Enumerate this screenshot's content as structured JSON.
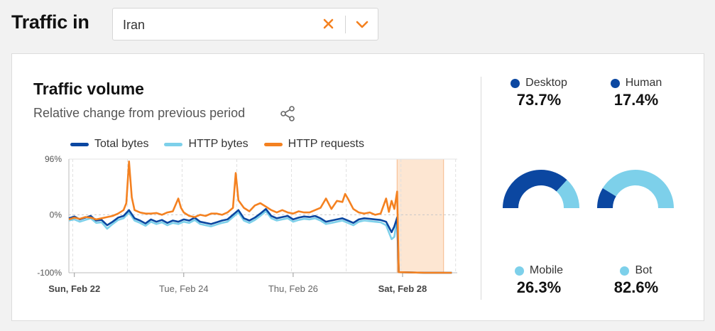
{
  "header": {
    "title": "Traffic in",
    "location_select": {
      "value": "Iran"
    }
  },
  "card": {
    "title": "Traffic volume",
    "subtitle": "Relative change from previous period"
  },
  "colors": {
    "total_bytes": "#0b47a1",
    "http_bytes": "#7dd0ea",
    "http_requests": "#f48120",
    "highlight": "#fde6d2",
    "human": "#0b47a1",
    "bot": "#7dd0ea"
  },
  "chart_data": {
    "type": "line",
    "legend": [
      "Total bytes",
      "HTTP bytes",
      "HTTP requests"
    ],
    "y_ticks": [
      "96%",
      "0%",
      "-100%"
    ],
    "x_ticks": [
      "Sun, Feb 22",
      "Tue, Feb 24",
      "Thu, Feb 26",
      "Sat, Feb 28"
    ],
    "ylim": [
      -100,
      96
    ],
    "x_range_days": [
      0,
      7.1
    ],
    "highlight_days": [
      6.0,
      6.85
    ],
    "series": [
      {
        "name": "Total bytes",
        "points": [
          [
            0,
            -6
          ],
          [
            0.1,
            -3
          ],
          [
            0.2,
            -8
          ],
          [
            0.3,
            -5
          ],
          [
            0.4,
            -2
          ],
          [
            0.5,
            -10
          ],
          [
            0.6,
            -9
          ],
          [
            0.7,
            -18
          ],
          [
            0.8,
            -12
          ],
          [
            0.9,
            -5
          ],
          [
            1.0,
            -2
          ],
          [
            1.1,
            8
          ],
          [
            1.2,
            -6
          ],
          [
            1.3,
            -10
          ],
          [
            1.4,
            -15
          ],
          [
            1.5,
            -8
          ],
          [
            1.6,
            -12
          ],
          [
            1.7,
            -9
          ],
          [
            1.8,
            -14
          ],
          [
            1.9,
            -10
          ],
          [
            2.0,
            -12
          ],
          [
            2.1,
            -8
          ],
          [
            2.2,
            -10
          ],
          [
            2.3,
            -5
          ],
          [
            2.4,
            -12
          ],
          [
            2.5,
            -14
          ],
          [
            2.6,
            -16
          ],
          [
            2.7,
            -13
          ],
          [
            2.8,
            -10
          ],
          [
            2.9,
            -8
          ],
          [
            3.0,
            0
          ],
          [
            3.1,
            8
          ],
          [
            3.2,
            -6
          ],
          [
            3.3,
            -10
          ],
          [
            3.4,
            -5
          ],
          [
            3.5,
            2
          ],
          [
            3.6,
            10
          ],
          [
            3.7,
            -2
          ],
          [
            3.8,
            -6
          ],
          [
            3.9,
            -4
          ],
          [
            4.0,
            -2
          ],
          [
            4.1,
            -8
          ],
          [
            4.2,
            -5
          ],
          [
            4.3,
            -3
          ],
          [
            4.4,
            -4
          ],
          [
            4.5,
            -2
          ],
          [
            4.6,
            -6
          ],
          [
            4.7,
            -12
          ],
          [
            4.8,
            -10
          ],
          [
            4.9,
            -8
          ],
          [
            5.0,
            -6
          ],
          [
            5.1,
            -10
          ],
          [
            5.2,
            -14
          ],
          [
            5.3,
            -8
          ],
          [
            5.4,
            -6
          ],
          [
            5.5,
            -7
          ],
          [
            5.6,
            -8
          ],
          [
            5.7,
            -9
          ],
          [
            5.8,
            -12
          ],
          [
            5.9,
            -30
          ],
          [
            5.95,
            -20
          ],
          [
            6.0,
            -5
          ],
          [
            6.03,
            -99
          ],
          [
            6.5,
            -100
          ],
          [
            7.0,
            -100
          ]
        ]
      },
      {
        "name": "HTTP bytes",
        "points": [
          [
            0,
            -10
          ],
          [
            0.1,
            -8
          ],
          [
            0.2,
            -12
          ],
          [
            0.3,
            -9
          ],
          [
            0.4,
            -6
          ],
          [
            0.5,
            -14
          ],
          [
            0.6,
            -13
          ],
          [
            0.7,
            -24
          ],
          [
            0.8,
            -16
          ],
          [
            0.9,
            -9
          ],
          [
            1.0,
            -6
          ],
          [
            1.1,
            4
          ],
          [
            1.2,
            -10
          ],
          [
            1.3,
            -14
          ],
          [
            1.4,
            -19
          ],
          [
            1.5,
            -12
          ],
          [
            1.6,
            -16
          ],
          [
            1.7,
            -13
          ],
          [
            1.8,
            -18
          ],
          [
            1.9,
            -14
          ],
          [
            2.0,
            -16
          ],
          [
            2.1,
            -12
          ],
          [
            2.2,
            -14
          ],
          [
            2.3,
            -9
          ],
          [
            2.4,
            -16
          ],
          [
            2.5,
            -18
          ],
          [
            2.6,
            -20
          ],
          [
            2.7,
            -17
          ],
          [
            2.8,
            -14
          ],
          [
            2.9,
            -12
          ],
          [
            3.0,
            -4
          ],
          [
            3.1,
            4
          ],
          [
            3.2,
            -10
          ],
          [
            3.3,
            -14
          ],
          [
            3.4,
            -9
          ],
          [
            3.5,
            -2
          ],
          [
            3.6,
            6
          ],
          [
            3.7,
            -6
          ],
          [
            3.8,
            -10
          ],
          [
            3.9,
            -8
          ],
          [
            4.0,
            -6
          ],
          [
            4.1,
            -12
          ],
          [
            4.2,
            -9
          ],
          [
            4.3,
            -7
          ],
          [
            4.4,
            -8
          ],
          [
            4.5,
            -6
          ],
          [
            4.6,
            -10
          ],
          [
            4.7,
            -16
          ],
          [
            4.8,
            -14
          ],
          [
            4.9,
            -12
          ],
          [
            5.0,
            -10
          ],
          [
            5.1,
            -14
          ],
          [
            5.2,
            -18
          ],
          [
            5.3,
            -12
          ],
          [
            5.4,
            -10
          ],
          [
            5.5,
            -11
          ],
          [
            5.6,
            -12
          ],
          [
            5.7,
            -13
          ],
          [
            5.8,
            -18
          ],
          [
            5.9,
            -42
          ],
          [
            5.95,
            -38
          ],
          [
            6.0,
            -4
          ],
          [
            6.03,
            -99
          ],
          [
            6.5,
            -100
          ],
          [
            7.0,
            -100
          ]
        ]
      },
      {
        "name": "HTTP requests",
        "points": [
          [
            0,
            -8
          ],
          [
            0.1,
            -5
          ],
          [
            0.2,
            -7
          ],
          [
            0.3,
            -4
          ],
          [
            0.4,
            -5
          ],
          [
            0.5,
            -8
          ],
          [
            0.6,
            -6
          ],
          [
            0.7,
            -4
          ],
          [
            0.8,
            -2
          ],
          [
            0.9,
            2
          ],
          [
            1.0,
            8
          ],
          [
            1.05,
            20
          ],
          [
            1.1,
            92
          ],
          [
            1.15,
            30
          ],
          [
            1.2,
            8
          ],
          [
            1.3,
            4
          ],
          [
            1.4,
            2
          ],
          [
            1.5,
            2
          ],
          [
            1.6,
            3
          ],
          [
            1.7,
            0
          ],
          [
            1.8,
            4
          ],
          [
            1.9,
            6
          ],
          [
            2.0,
            28
          ],
          [
            2.05,
            12
          ],
          [
            2.1,
            4
          ],
          [
            2.2,
            -2
          ],
          [
            2.3,
            -4
          ],
          [
            2.4,
            0
          ],
          [
            2.5,
            -2
          ],
          [
            2.6,
            2
          ],
          [
            2.7,
            2
          ],
          [
            2.8,
            0
          ],
          [
            2.9,
            4
          ],
          [
            3.0,
            12
          ],
          [
            3.05,
            72
          ],
          [
            3.1,
            25
          ],
          [
            3.2,
            12
          ],
          [
            3.3,
            6
          ],
          [
            3.4,
            16
          ],
          [
            3.5,
            20
          ],
          [
            3.6,
            14
          ],
          [
            3.7,
            8
          ],
          [
            3.8,
            4
          ],
          [
            3.9,
            8
          ],
          [
            4.0,
            4
          ],
          [
            4.1,
            2
          ],
          [
            4.2,
            6
          ],
          [
            4.3,
            4
          ],
          [
            4.4,
            4
          ],
          [
            4.5,
            8
          ],
          [
            4.6,
            12
          ],
          [
            4.7,
            28
          ],
          [
            4.8,
            10
          ],
          [
            4.9,
            24
          ],
          [
            5.0,
            22
          ],
          [
            5.05,
            36
          ],
          [
            5.1,
            28
          ],
          [
            5.2,
            10
          ],
          [
            5.3,
            4
          ],
          [
            5.4,
            2
          ],
          [
            5.5,
            4
          ],
          [
            5.6,
            0
          ],
          [
            5.7,
            2
          ],
          [
            5.8,
            28
          ],
          [
            5.85,
            5
          ],
          [
            5.9,
            24
          ],
          [
            5.95,
            10
          ],
          [
            6.0,
            40
          ],
          [
            6.03,
            -99
          ],
          [
            6.5,
            -100
          ],
          [
            7.0,
            -100
          ]
        ]
      }
    ]
  },
  "stats": {
    "desktop": {
      "label": "Desktop",
      "value": "73.7%",
      "fraction": 0.737
    },
    "mobile": {
      "label": "Mobile",
      "value": "26.3%",
      "fraction": 0.263
    },
    "human": {
      "label": "Human",
      "value": "17.4%",
      "fraction": 0.174
    },
    "bot": {
      "label": "Bot",
      "value": "82.6%",
      "fraction": 0.826
    }
  }
}
